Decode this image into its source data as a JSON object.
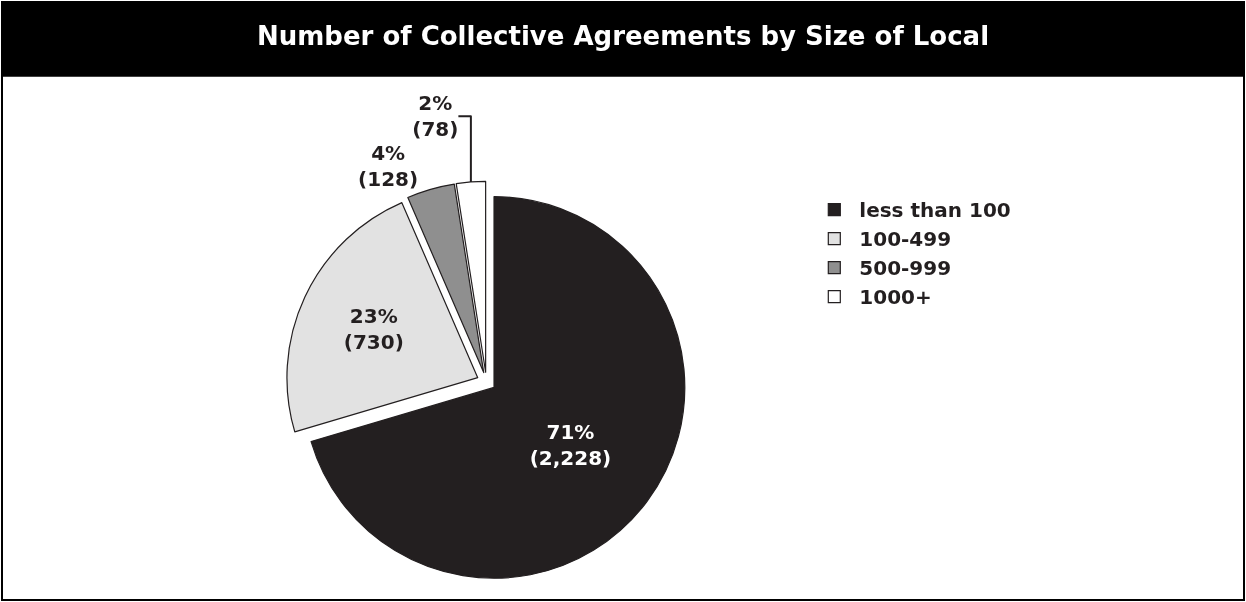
{
  "chart_data": {
    "type": "pie",
    "title": "Number of Collective Agreements by Size of Local",
    "categories": [
      "less than 100",
      "100-499",
      "500-999",
      "1000+"
    ],
    "values": [
      2228,
      730,
      128,
      78
    ],
    "colors": [
      "#231f20",
      "#e2e2e2",
      "#8f8f8f",
      "#ffffff"
    ],
    "value_labels": [
      "71%\n(2,228)",
      "23%\n(730)",
      "4%\n(128)",
      "2%\n(78)"
    ],
    "legend": "right"
  }
}
